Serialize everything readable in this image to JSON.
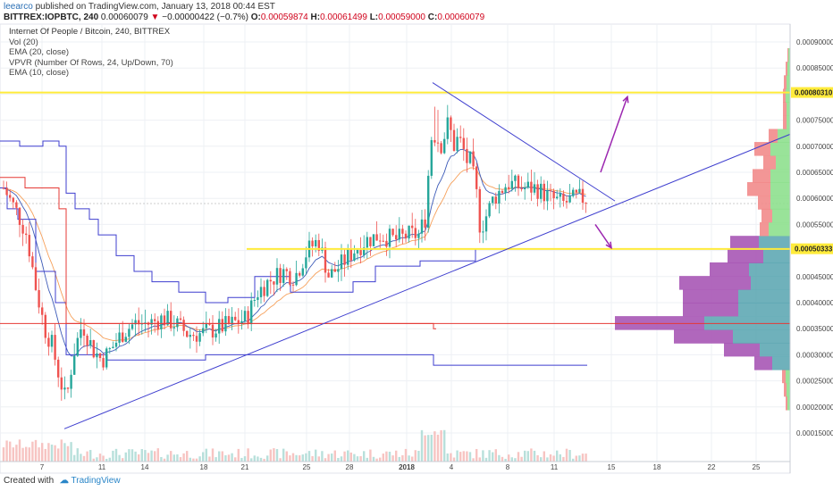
{
  "header": {
    "author": "leearco",
    "published": "published on TradingView.com, January 13, 2018 00:44 EST",
    "symbol": "BITTREX:IOPBTC, 240",
    "open_change": "0.00060079",
    "change": "−0.00000422 (−0.7%)",
    "o_label": "O:",
    "o_val": "0.00059874",
    "h_label": "H:",
    "h_val": "0.00061499",
    "l_label": "L:",
    "l_val": "0.00059000",
    "c_label": "C:",
    "c_val": "0.00060079"
  },
  "legend": {
    "title": "Internet Of People / Bitcoin, 240, BITTREX",
    "items": [
      "Vol (20)",
      "EMA (20, close)",
      "VPVR (Number Of Rows, 24, Up/Down, 70)",
      "EMA (10, close)"
    ]
  },
  "footer": {
    "created": "Created with",
    "brand": "TradingView"
  },
  "chart_data": {
    "type": "candlestick",
    "y_axis": {
      "ylim": [
        0.00012,
        0.00092
      ],
      "ticks": [
        "0.00015000",
        "0.00020000",
        "0.00025000",
        "0.00030000",
        "0.00035000",
        "0.00040000",
        "0.00045000",
        "0.00050000",
        "0.00055000",
        "0.00060000",
        "0.00065000",
        "0.00070000",
        "0.00075000",
        "0.00080000",
        "0.00085000",
        "0.00090000"
      ]
    },
    "x_axis": {
      "tick_labels": [
        "7",
        "11",
        "14",
        "18",
        "21",
        "25",
        "28",
        "2018",
        "4",
        "8",
        "11",
        "15",
        "18",
        "22",
        "25"
      ]
    },
    "price_labels": [
      {
        "text": "0.00080310",
        "color": "#ffeb3b"
      },
      {
        "text": "0.00050333",
        "color": "#ffeb3b"
      }
    ],
    "horizontal_lines": [
      {
        "name": "resistance",
        "y": 0.000803,
        "color": "#ffeb3b"
      },
      {
        "name": "support",
        "y": 0.000503,
        "color": "#ffeb3b"
      },
      {
        "name": "red-level",
        "y": 0.00036,
        "color": "#e53935"
      }
    ],
    "trendlines": [
      {
        "name": "rising-support",
        "from": [
          72,
          0.000158
        ],
        "to": [
          884,
          0.000723
        ]
      },
      {
        "name": "falling-resistance",
        "from": [
          484,
          0.000822
        ],
        "to": [
          688,
          0.000595
        ]
      }
    ],
    "arrows": [
      {
        "name": "up-arrow",
        "from": [
          672,
          0.00065
        ],
        "to": [
          702,
          0.000795
        ]
      },
      {
        "name": "down-arrow",
        "from": [
          666,
          0.00055
        ],
        "to": [
          684,
          0.000505
        ]
      }
    ],
    "vpvr": [
      {
        "price": 0.000206,
        "up": 3,
        "down": 2
      },
      {
        "price": 0.000232,
        "up": 4,
        "down": 3
      },
      {
        "price": 0.000258,
        "up": 5,
        "down": 4
      },
      {
        "price": 0.000283,
        "up": 20,
        "down": 20
      },
      {
        "price": 0.000309,
        "up": 34,
        "down": 40
      },
      {
        "price": 0.000334,
        "up": 64,
        "down": 66
      },
      {
        "price": 0.00036,
        "up": 96,
        "down": 100
      },
      {
        "price": 0.000386,
        "up": 58,
        "down": 62
      },
      {
        "price": 0.000411,
        "up": 58,
        "down": 62
      },
      {
        "price": 0.000437,
        "up": 44,
        "down": 80
      },
      {
        "price": 0.000463,
        "up": 46,
        "down": 44
      },
      {
        "price": 0.000488,
        "up": 30,
        "down": 40
      },
      {
        "price": 0.000514,
        "up": 35,
        "down": 32
      },
      {
        "price": 0.00054,
        "up": 24,
        "down": 10
      },
      {
        "price": 0.000566,
        "up": 20,
        "down": 12
      },
      {
        "price": 0.000591,
        "up": 22,
        "down": 14
      },
      {
        "price": 0.000617,
        "up": 22,
        "down": 26
      },
      {
        "price": 0.000642,
        "up": 22,
        "down": 20
      },
      {
        "price": 0.000668,
        "up": 16,
        "down": 14
      },
      {
        "price": 0.000694,
        "up": 22,
        "down": 18
      },
      {
        "price": 0.000719,
        "up": 14,
        "down": 10
      },
      {
        "price": 0.000745,
        "up": 4,
        "down": 4
      },
      {
        "price": 0.000771,
        "up": 4,
        "down": 4
      },
      {
        "price": 0.000796,
        "up": 5,
        "down": 3
      },
      {
        "price": 0.000822,
        "up": 4,
        "down": 3
      },
      {
        "price": 0.000848,
        "up": 3,
        "down": 2
      },
      {
        "price": 0.000874,
        "up": 2,
        "down": 1
      }
    ],
    "colors": {
      "up": "#26a69a",
      "down": "#ef5350",
      "trend": "#3f3fcf",
      "arrow": "#9c27b0",
      "vpvr_up": "#5fa8b4",
      "vpvr_down": "#a757b5"
    }
  }
}
